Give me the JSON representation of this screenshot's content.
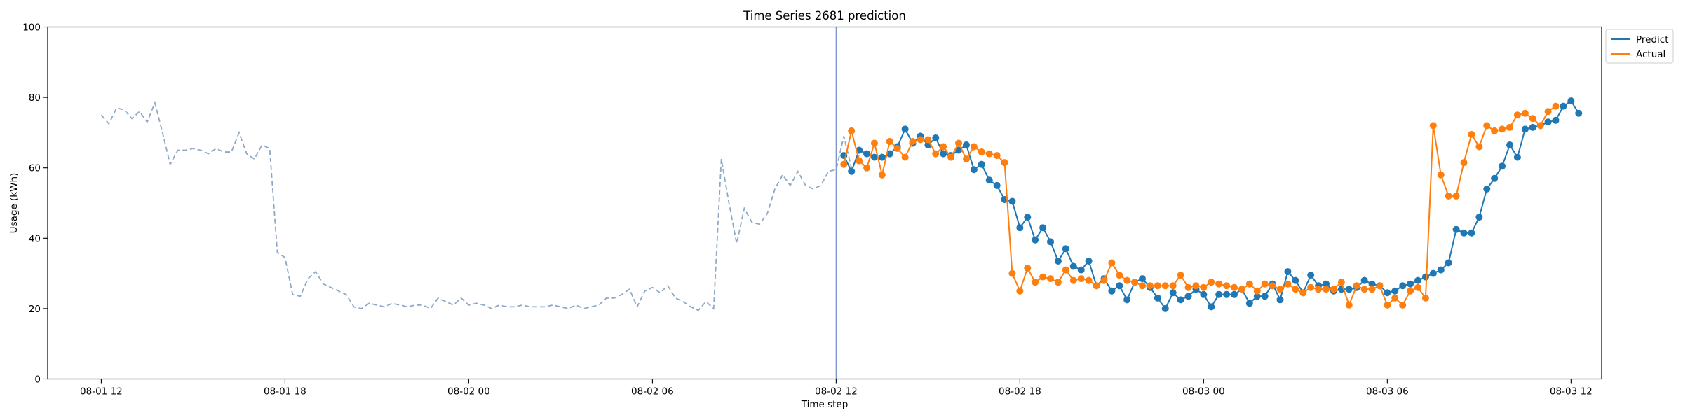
{
  "chart_data": {
    "type": "line",
    "title": "Time Series 2681 prediction",
    "xlabel": "Time step",
    "ylabel": "Usage (kWh)",
    "ylim": [
      0,
      100
    ],
    "yticks": [
      0,
      20,
      40,
      60,
      80,
      100
    ],
    "xlim": [
      "08-01 10:15",
      "08-03 13:00"
    ],
    "xticks": [
      {
        "label": "08-01 12",
        "time": "08-01 12:00"
      },
      {
        "label": "08-01 18",
        "time": "08-01 18:00"
      },
      {
        "label": "08-02 00",
        "time": "08-02 00:00"
      },
      {
        "label": "08-02 06",
        "time": "08-02 06:00"
      },
      {
        "label": "08-02 12",
        "time": "08-02 12:00"
      },
      {
        "label": "08-02 18",
        "time": "08-02 18:00"
      },
      {
        "label": "08-03 00",
        "time": "08-03 00:00"
      },
      {
        "label": "08-03 06",
        "time": "08-03 06:00"
      },
      {
        "label": "08-03 12",
        "time": "08-03 12:00"
      }
    ],
    "interval_minutes": 15,
    "history": {
      "color": "#8ea8c8",
      "style": "dashed",
      "start": "08-01 12:00",
      "values": [
        75,
        72.5,
        77,
        76.5,
        74,
        76,
        73,
        78.5,
        70,
        61,
        65,
        65,
        65.5,
        65,
        64,
        65.5,
        64.5,
        64.5,
        70,
        64,
        62.5,
        66.5,
        65.5,
        36,
        34.5,
        24,
        23.5,
        28.5,
        30.5,
        27,
        26,
        25,
        24,
        20.5,
        20,
        21.5,
        21,
        20.5,
        21.5,
        21,
        20.5,
        21,
        21,
        20,
        23,
        22,
        21,
        23,
        21,
        21.5,
        21,
        20,
        21,
        20.5,
        20.5,
        21,
        20.5,
        20.5,
        20.5,
        21,
        20.5,
        20,
        21,
        20,
        20.5,
        21,
        23,
        23,
        24,
        25.5,
        20.5,
        25,
        26,
        24.5,
        26.5,
        23,
        22,
        20.5,
        19.5,
        22,
        20,
        62.5,
        50,
        38.5,
        48.5,
        44.5,
        44,
        47,
        54,
        58,
        55,
        59,
        55,
        54,
        55,
        59,
        59.5,
        69,
        60,
        63.5
      ]
    },
    "series": [
      {
        "name": "Predict",
        "color": "#1f77b4",
        "start": "08-02 12:15",
        "values": [
          63.5,
          59,
          65,
          64,
          63,
          63,
          64,
          66,
          71,
          67,
          69,
          66.5,
          68.5,
          64,
          63.5,
          65,
          66.5,
          59.5,
          61,
          56.5,
          55,
          51,
          50.5,
          43,
          46,
          39.5,
          43,
          39,
          33.5,
          37,
          32,
          31,
          33.5,
          26.5,
          28.5,
          25,
          26.5,
          22.5,
          27.5,
          28.5,
          26,
          23,
          20,
          24.5,
          22.5,
          23.5,
          25.5,
          24,
          20.5,
          24,
          24,
          24,
          25.5,
          21.5,
          23.5,
          23.5,
          27,
          22.5,
          30.5,
          28,
          24.5,
          29.5,
          26.5,
          27,
          25,
          25.5,
          25.5,
          26,
          28,
          27,
          26.5,
          24.5,
          25,
          26.5,
          27,
          28,
          29,
          30,
          31,
          33,
          42.5,
          41.5,
          41.5,
          46,
          54,
          57,
          60.5,
          66.5,
          63,
          71,
          71.5,
          72,
          73,
          73.5,
          77.5,
          79,
          75.5
        ]
      },
      {
        "name": "Actual",
        "color": "#ff7f0e",
        "start": "08-02 12:15",
        "values": [
          61,
          70.5,
          62,
          60,
          67,
          58,
          67.5,
          65.5,
          63,
          67.5,
          68,
          68,
          64,
          66,
          63,
          67,
          62.5,
          66,
          64.5,
          64,
          63.5,
          61.5,
          30,
          25,
          31.5,
          27.5,
          29,
          28.5,
          27.5,
          31,
          28,
          28.5,
          28,
          26.5,
          28,
          33,
          29.5,
          28,
          27.5,
          26.5,
          26.5,
          26.5,
          26.5,
          26.5,
          29.5,
          26,
          26.5,
          26,
          27.5,
          27,
          26.5,
          26,
          25.5,
          27,
          25,
          27,
          26.5,
          25.5,
          27,
          25.5,
          24.5,
          26,
          25.5,
          25.5,
          25.5,
          27.5,
          21,
          26.5,
          25.5,
          25.5,
          26.5,
          21,
          23,
          21,
          25,
          26,
          23,
          72,
          58,
          52,
          52,
          61.5,
          69.5,
          66,
          72,
          70.5,
          71,
          71.5,
          75,
          75.5,
          74,
          72,
          76,
          77.5
        ]
      }
    ],
    "forecast_start": "08-02 12:00",
    "vline_color": "#7d96c8",
    "legend": {
      "placement": "outside-top-right",
      "entries": [
        "Predict",
        "Actual"
      ]
    },
    "grid": false
  }
}
